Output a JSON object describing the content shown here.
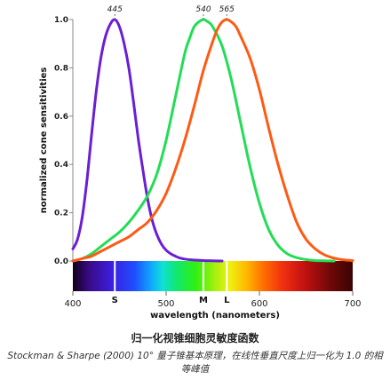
{
  "chart_data": {
    "type": "line",
    "title": "",
    "xlabel": "wavelength (nanometers)",
    "ylabel": "normalized cone sensitivities",
    "xlim": [
      400,
      700
    ],
    "ylim": [
      0,
      1
    ],
    "x_ticks": [
      "400",
      "500",
      "600",
      "700"
    ],
    "y_ticks": [
      "0.0",
      "0.2",
      "0.4",
      "0.6",
      "0.8",
      "1.0"
    ],
    "peak_labels": [
      "445",
      "540",
      "565"
    ],
    "cone_labels": [
      "S",
      "M",
      "L"
    ],
    "cone_marks": [
      445,
      540,
      565
    ],
    "spectrum_bar": true,
    "series": [
      {
        "name": "S",
        "color": "#6a1fd4",
        "x": [
          400,
          405,
          410,
          415,
          420,
          425,
          430,
          435,
          440,
          445,
          450,
          455,
          460,
          465,
          470,
          475,
          480,
          485,
          490,
          495,
          500,
          505,
          510,
          515,
          520,
          530,
          540,
          550,
          560
        ],
        "values": [
          0.05,
          0.09,
          0.18,
          0.33,
          0.52,
          0.7,
          0.84,
          0.93,
          0.98,
          1.0,
          0.97,
          0.9,
          0.8,
          0.66,
          0.51,
          0.38,
          0.26,
          0.17,
          0.11,
          0.07,
          0.045,
          0.03,
          0.02,
          0.012,
          0.008,
          0.004,
          0.002,
          0.001,
          0.0
        ]
      },
      {
        "name": "M",
        "color": "#22dd55",
        "x": [
          400,
          410,
          420,
          430,
          440,
          450,
          460,
          470,
          480,
          490,
          500,
          510,
          520,
          525,
          530,
          535,
          540,
          545,
          550,
          560,
          570,
          580,
          590,
          600,
          610,
          620,
          630,
          640,
          650,
          660,
          670,
          680
        ],
        "values": [
          0.0,
          0.01,
          0.03,
          0.06,
          0.09,
          0.12,
          0.16,
          0.21,
          0.27,
          0.36,
          0.5,
          0.68,
          0.86,
          0.92,
          0.97,
          0.99,
          1.0,
          0.99,
          0.97,
          0.89,
          0.75,
          0.57,
          0.39,
          0.24,
          0.13,
          0.065,
          0.03,
          0.014,
          0.006,
          0.002,
          0.001,
          0.0
        ]
      },
      {
        "name": "L",
        "color": "#ff5a14",
        "x": [
          400,
          410,
          420,
          430,
          440,
          450,
          460,
          470,
          480,
          490,
          500,
          510,
          520,
          530,
          540,
          550,
          555,
          560,
          565,
          570,
          575,
          580,
          590,
          600,
          610,
          620,
          630,
          640,
          650,
          660,
          670,
          680,
          690,
          700
        ],
        "values": [
          0.0,
          0.01,
          0.02,
          0.04,
          0.06,
          0.08,
          0.1,
          0.13,
          0.16,
          0.21,
          0.28,
          0.38,
          0.5,
          0.64,
          0.79,
          0.91,
          0.96,
          0.99,
          1.0,
          0.99,
          0.97,
          0.93,
          0.84,
          0.71,
          0.55,
          0.4,
          0.27,
          0.16,
          0.09,
          0.05,
          0.025,
          0.012,
          0.005,
          0.002
        ]
      }
    ]
  },
  "caption": {
    "title": "归一化视锥细胞灵敏度函数",
    "text": "Stockman & Sharpe (2000) 10° 量子锥基本原理，在线性垂直尺度上归一化为 1.0 的相等峰值"
  }
}
